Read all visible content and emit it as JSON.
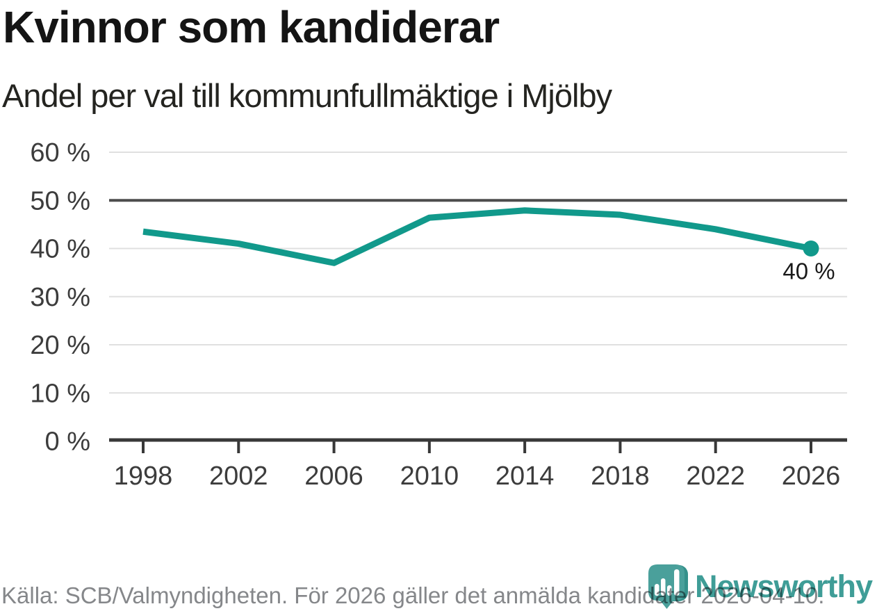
{
  "header": {
    "title": "Kvinnor som kandiderar",
    "subtitle": "Andel per val till kommunfullmäktige i Mjölby"
  },
  "chart_data": {
    "type": "line",
    "title": "Kvinnor som kandiderar",
    "subtitle": "Andel per val till kommunfullmäktige i Mjölby",
    "x": [
      1998,
      2002,
      2006,
      2010,
      2014,
      2018,
      2022,
      2026
    ],
    "x_tick_labels": [
      "1998",
      "2002",
      "2006",
      "2010",
      "2014",
      "2018",
      "2022",
      "2026"
    ],
    "values": [
      43.5,
      41,
      37,
      46.4,
      47.9,
      47,
      44,
      40
    ],
    "ylim": [
      0,
      60
    ],
    "y_ticks": [
      0,
      10,
      20,
      30,
      40,
      50,
      60
    ],
    "y_tick_labels": [
      "0 %",
      "10 %",
      "20 %",
      "30 %",
      "40 %",
      "50 %",
      "60 %"
    ],
    "reference_line_y": 50,
    "end_point_label": "40 %",
    "grid": "horizontal",
    "legend": "none",
    "line_color": "#11998b",
    "reference_line_color": "#4d4d4d",
    "grid_color": "#e0e0e0",
    "axis_color": "#383838",
    "tick_label_color": "#3c3c3c",
    "end_label_color": "#1a1a1a"
  },
  "footer": {
    "source_text": "Källa: SCB/Valmyndigheten. För 2026 gäller det anmälda kandidater 2026-04-10."
  },
  "branding": {
    "logo_text": "Newsworthy",
    "logo_color": "#3f9d97",
    "logo_icon_color": "#4aa09b",
    "logo_icon_shadow_color": "#35918b",
    "logo_icon": "newsworthy-pin-barchart-icon"
  }
}
